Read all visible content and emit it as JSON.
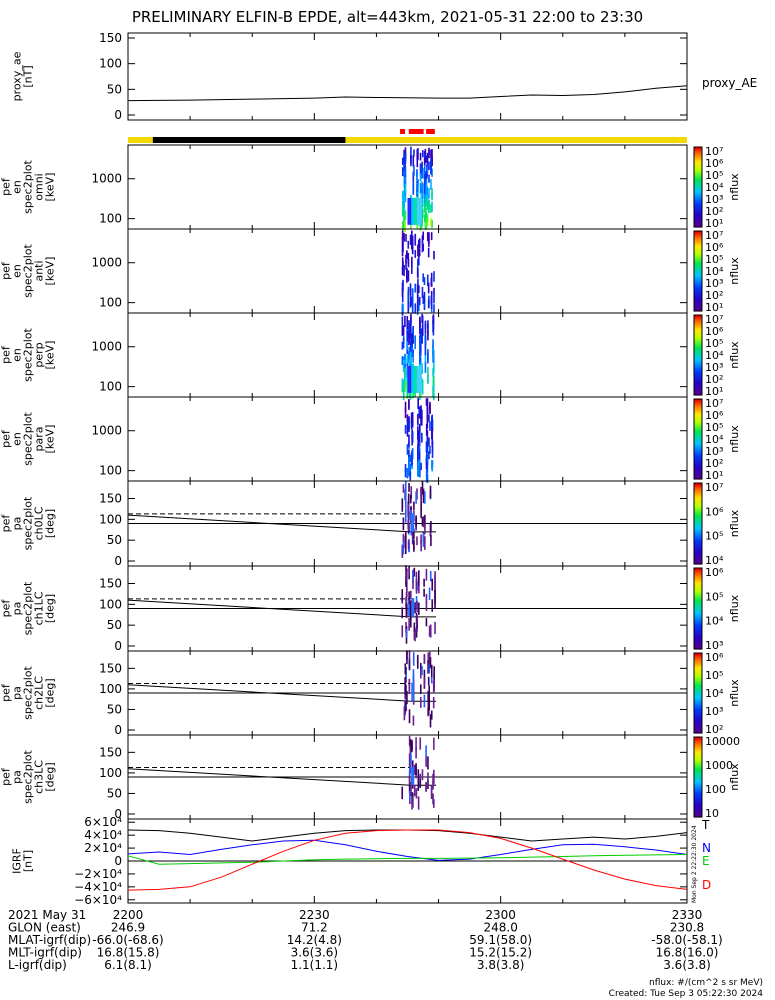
{
  "title": "PRELIMINARY ELFIN-B EPDE, alt=443km, 2021-05-31 22:00 to 23:30",
  "colors": {
    "ae_line": "#000000",
    "state_bar_yellow": "#f2da00",
    "state_bar_black": "#000000",
    "state_bar_red": "#ff0000",
    "igrf_T": "#000000",
    "igrf_N": "#0000ff",
    "igrf_E": "#00cc00",
    "igrf_D": "#ff0000"
  },
  "chart_data": [
    {
      "type": "line",
      "panel": "proxy_ae",
      "ylabel": "proxy_ae\n[nT]",
      "legend": "proxy_AE",
      "ylim": [
        0,
        150
      ],
      "yticks": [
        "150",
        "100",
        "50",
        "0"
      ],
      "x_minutes": [
        0,
        10,
        20,
        30,
        35,
        40,
        50,
        55,
        60,
        65,
        70,
        75,
        80,
        85,
        90
      ],
      "values": [
        28,
        29,
        31,
        33,
        35,
        34,
        33,
        33,
        36,
        39,
        38,
        40,
        45,
        52,
        57
      ]
    },
    {
      "type": "bar",
      "panel": "state_bar",
      "note": "orbit / science-zone indicator",
      "x_minutes_yellow": [
        0,
        90
      ],
      "x_minutes_black": [
        4,
        35
      ],
      "x_minutes_red": [
        [
          43.8,
          44.6
        ],
        [
          45.2,
          47.6
        ],
        [
          48.0,
          49.4
        ]
      ]
    },
    {
      "type": "heatmap",
      "panel": "spec2plot_omni",
      "ylabel": "elb\npef\nen\nspec2plot\nomni\n[keV]",
      "yscale": "log",
      "ylim": [
        55,
        7000
      ],
      "yticks": [
        "1000",
        "100"
      ],
      "colorbar": {
        "label": "nflux",
        "scale": "log",
        "ticks": [
          "10⁷",
          "10⁶",
          "10⁵",
          "10⁴",
          "10³",
          "10²",
          "10¹"
        ]
      }
    },
    {
      "type": "heatmap",
      "panel": "spec2plot_anti",
      "ylabel": "elb\npef\nen\nspec2plot\nanti\n[keV]",
      "yscale": "log",
      "ylim": [
        55,
        7000
      ],
      "yticks": [
        "1000",
        "100"
      ],
      "colorbar": {
        "label": "nflux",
        "scale": "log",
        "ticks": [
          "10⁷",
          "10⁶",
          "10⁵",
          "10⁴",
          "10³",
          "10²",
          "10¹"
        ]
      }
    },
    {
      "type": "heatmap",
      "panel": "spec2plot_perp",
      "ylabel": "elb\npef\nen\nspec2plot\nperp\n[keV]",
      "yscale": "log",
      "ylim": [
        55,
        7000
      ],
      "yticks": [
        "1000",
        "100"
      ],
      "colorbar": {
        "label": "nflux",
        "scale": "log",
        "ticks": [
          "10⁷",
          "10⁶",
          "10⁵",
          "10⁴",
          "10³",
          "10²",
          "10¹"
        ]
      }
    },
    {
      "type": "heatmap",
      "panel": "spec2plot_para",
      "ylabel": "elb\npef\nen\nspec2plot\npara\n[keV]",
      "yscale": "log",
      "ylim": [
        55,
        7000
      ],
      "yticks": [
        "1000",
        "100"
      ],
      "colorbar": {
        "label": "nflux",
        "scale": "log",
        "ticks": [
          "10⁷",
          "10⁶",
          "10⁵",
          "10⁴",
          "10³",
          "10²",
          "10¹"
        ]
      }
    },
    {
      "type": "heatmap",
      "panel": "pa_ch0LC",
      "ylabel": "elb\npef\npa\nspec2plot\nch0LC\n[deg]",
      "ylim": [
        0,
        180
      ],
      "yticks": [
        "150",
        "100",
        "50",
        "0"
      ],
      "colorbar": {
        "label": "nflux",
        "scale": "log",
        "ticks": [
          "10⁷",
          "10⁶",
          "10⁵",
          "10⁴"
        ]
      }
    },
    {
      "type": "heatmap",
      "panel": "pa_ch1LC",
      "ylabel": "elb\npef\npa\nspec2plot\nch1LC\n[deg]",
      "ylim": [
        0,
        180
      ],
      "yticks": [
        "150",
        "100",
        "50",
        "0"
      ],
      "colorbar": {
        "label": "nflux",
        "scale": "log",
        "ticks": [
          "10⁶",
          "10⁵",
          "10⁴",
          "10³"
        ]
      }
    },
    {
      "type": "heatmap",
      "panel": "pa_ch2LC",
      "ylabel": "elb\npef\npa\nspec2plot\nch2LC\n[deg]",
      "ylim": [
        0,
        180
      ],
      "yticks": [
        "150",
        "100",
        "50",
        "0"
      ],
      "colorbar": {
        "label": "nflux",
        "scale": "log",
        "ticks": [
          "10⁶",
          "10⁵",
          "10⁴",
          "10³",
          "10²"
        ]
      }
    },
    {
      "type": "heatmap",
      "panel": "pa_ch3LC",
      "ylabel": "elb\npef\npa\nspec2plot\nch3LC\n[deg]",
      "ylim": [
        0,
        180
      ],
      "yticks": [
        "150",
        "100",
        "50",
        "0"
      ],
      "colorbar": {
        "label": "nflux",
        "scale": "log",
        "ticks": [
          "10000",
          "1000",
          "100",
          "10"
        ]
      }
    },
    {
      "type": "line",
      "panel": "igrf",
      "ylabel": "IGRF\n[nT]",
      "ylim": [
        -65000,
        65000
      ],
      "yticks": [
        "6×10⁴",
        "4×10⁴",
        "2×10⁴",
        "0",
        "−2×10⁴",
        "−4×10⁴",
        "−6×10⁴"
      ],
      "x_minutes": [
        0,
        5,
        10,
        15,
        20,
        25,
        30,
        35,
        40,
        45,
        50,
        55,
        60,
        65,
        70,
        75,
        80,
        85,
        90
      ],
      "series": [
        {
          "name": "T",
          "values": [
            48000,
            47000,
            43000,
            37000,
            31000,
            37000,
            43000,
            47000,
            48000,
            48000,
            47000,
            43000,
            37000,
            31000,
            34000,
            37000,
            34000,
            38000,
            44000
          ]
        },
        {
          "name": "N",
          "values": [
            11000,
            14000,
            10000,
            18000,
            25000,
            31000,
            32000,
            25000,
            15000,
            7000,
            1000,
            3000,
            10000,
            18000,
            25000,
            26000,
            22000,
            17000,
            10000
          ]
        },
        {
          "name": "E",
          "values": [
            8000,
            -5000,
            -4000,
            -3000,
            -2000,
            0,
            2000,
            3000,
            3500,
            4000,
            4000,
            4500,
            5000,
            6000,
            7000,
            8000,
            9000,
            9500,
            10000
          ]
        },
        {
          "name": "D",
          "values": [
            -45000,
            -44000,
            -40000,
            -25000,
            -5000,
            15000,
            32000,
            43000,
            47000,
            48000,
            48000,
            44000,
            35000,
            20000,
            3000,
            -14000,
            -28000,
            -38000,
            -44000
          ]
        }
      ]
    }
  ],
  "time_axis": {
    "ticks": [
      "2200",
      "2230",
      "2300",
      "2330"
    ],
    "footer_rows": [
      {
        "label": "2021 May 31",
        "values": [
          "2200",
          "2230",
          "2300",
          "2330"
        ]
      },
      {
        "label": "GLON (east)",
        "values": [
          "246.9",
          "71.2",
          "248.0",
          "230.8"
        ]
      },
      {
        "label": "MLAT-igrf(dip)",
        "values": [
          "-66.0(-68.6)",
          "14.2(4.8)",
          "59.1(58.0)",
          "-58.0(-58.1)"
        ]
      },
      {
        "label": "MLT-igrf(dip)",
        "values": [
          "16.8(15.8)",
          "3.6(3.6)",
          "15.2(15.2)",
          "16.8(16.0)"
        ]
      },
      {
        "label": "L-igrf(dip)",
        "values": [
          "6.1(8.1)",
          "1.1(1.1)",
          "3.8(3.8)",
          "3.6(3.8)"
        ]
      }
    ]
  },
  "footnote": {
    "units": "nflux: #/(cm^2 s sr MeV)",
    "created": "Created: Tue Sep  3 05:22:30 2024",
    "stamp": "Mon Sep  2 22:22:30 2024"
  }
}
